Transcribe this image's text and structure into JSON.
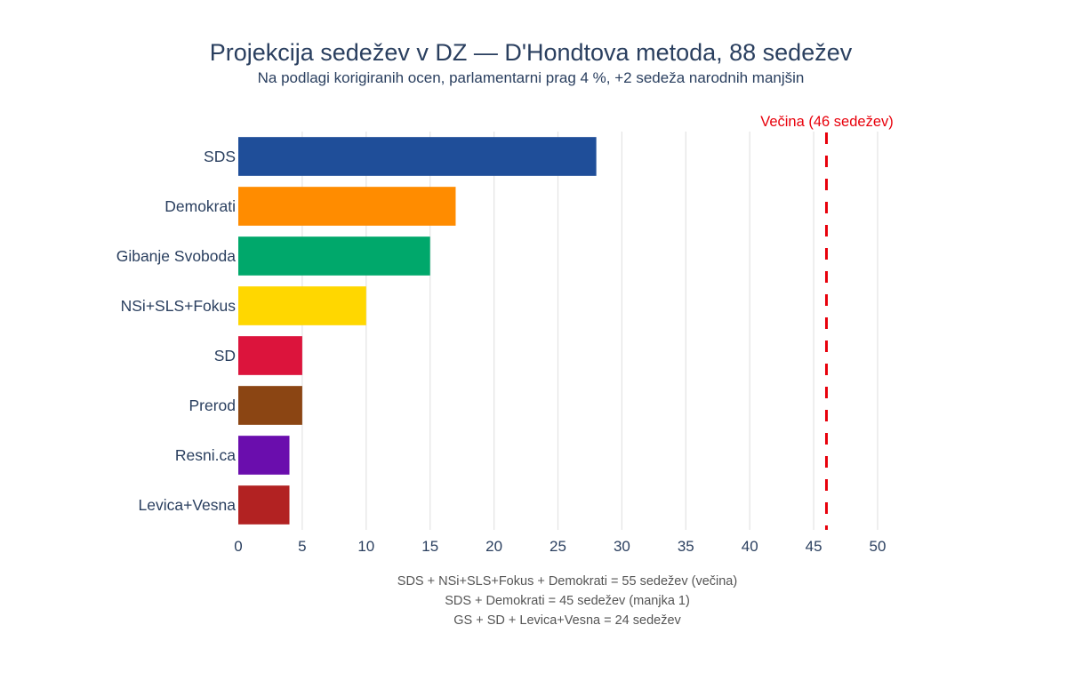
{
  "title": "Projekcija sedežev v DZ — D'Hondtova metoda, 88 sedežev",
  "subtitle": "Na podlagi korigiranih ocen, parlamentarni prag 4 %, +2 sedeža narodnih manjšin",
  "chart_data": {
    "type": "bar",
    "orientation": "horizontal",
    "title": "Projekcija sedežev v DZ — D'Hondtova metoda, 88 sedežev",
    "subtitle": "Na podlagi korigiranih ocen, parlamentarni prag 4 %, +2 sedeža narodnih manjšin",
    "categories": [
      "SDS",
      "Demokrati",
      "Gibanje Svoboda",
      "NSi+SLS+Fokus",
      "SD",
      "Prerod",
      "Resni.ca",
      "Levica+Vesna"
    ],
    "values": [
      28,
      17,
      15,
      10,
      5,
      5,
      4,
      4
    ],
    "colors": [
      "#1f4e99",
      "#ff8c00",
      "#00a86b",
      "#ffd700",
      "#dc143c",
      "#8b4513",
      "#6a0dad",
      "#b22222"
    ],
    "xlabel": "",
    "ylabel": "",
    "xlim": [
      0,
      52
    ],
    "xticks": [
      0,
      5,
      10,
      15,
      20,
      25,
      30,
      35,
      40,
      45,
      50
    ],
    "grid": true,
    "majority_line": {
      "value": 46,
      "label": "Večina (46 sedežev)",
      "color": "#e8000b"
    }
  },
  "annotations": [
    "SDS + NSi+SLS+Fokus + Demokrati = 55 sedežev (večina)",
    "SDS + Demokrati = 45 sedežev (manjka 1)",
    "GS + SD + Levica+Vesna = 24 sedežev"
  ]
}
